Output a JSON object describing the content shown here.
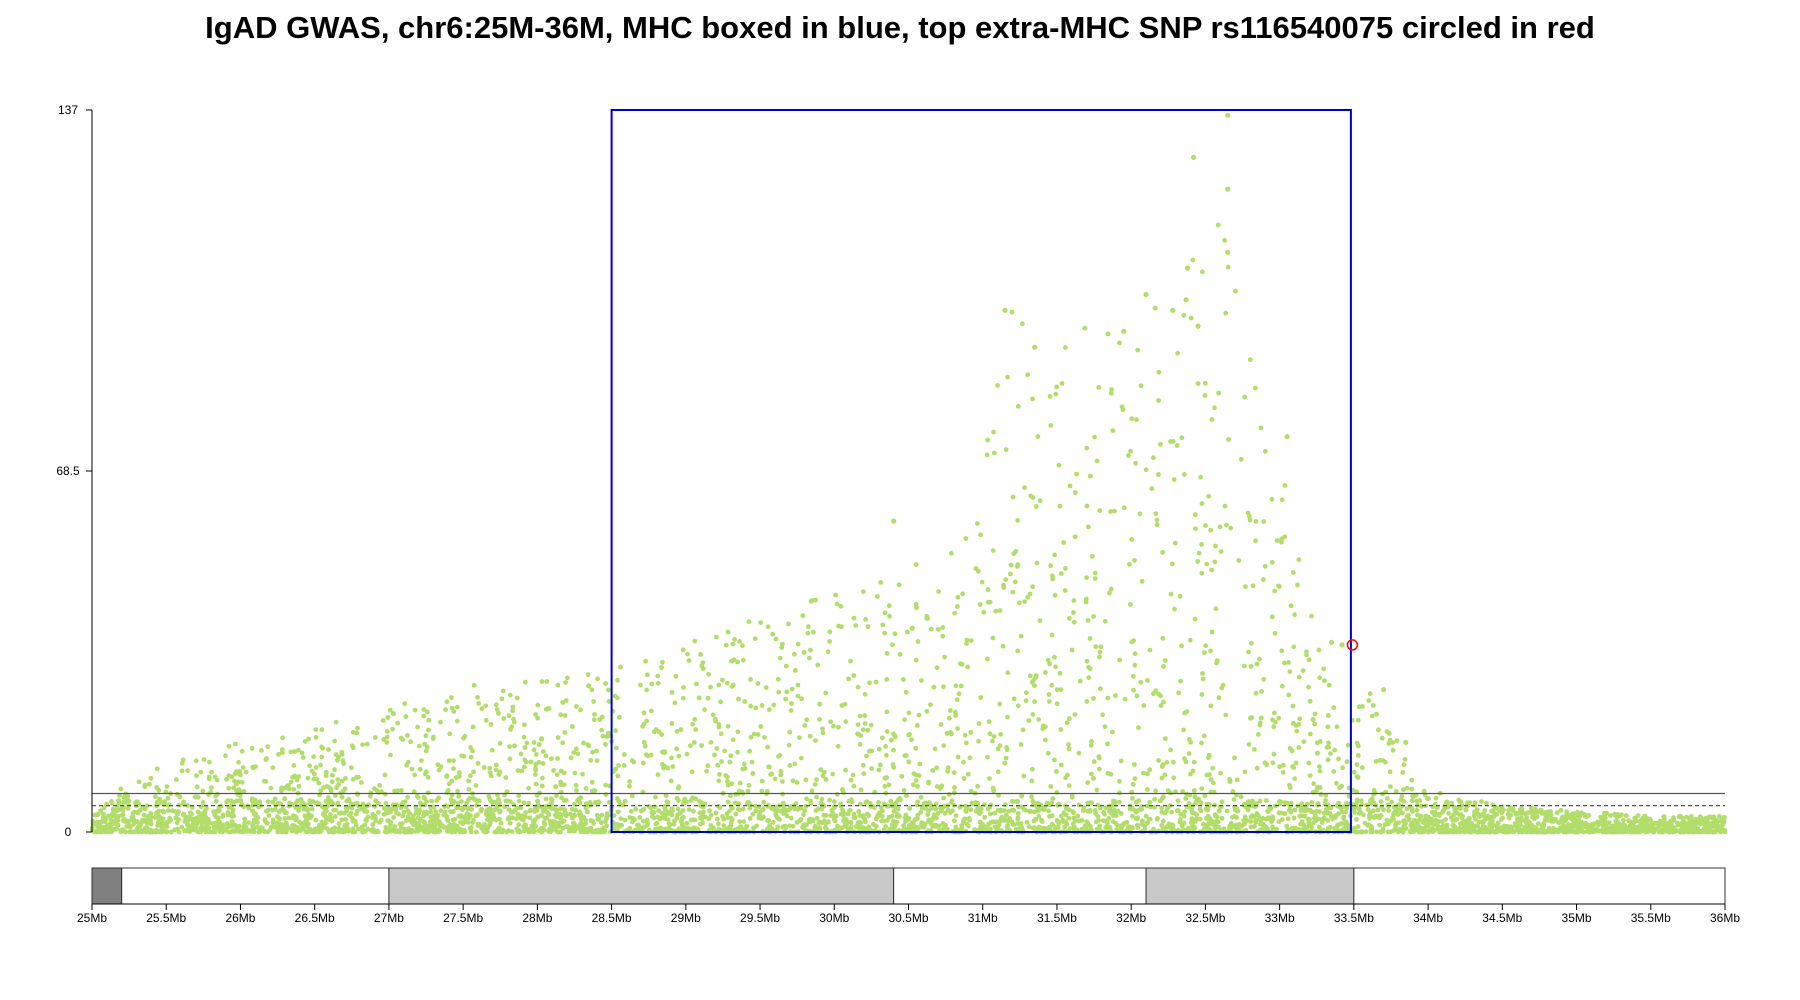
{
  "chart_data": {
    "type": "scatter",
    "title": "IgAD GWAS, chr6:25M-36M, MHC boxed in blue, top extra-MHC SNP rs116540075 circled in red",
    "xlabel": "",
    "ylabel": "",
    "xlim": [
      25,
      36
    ],
    "ylim": [
      0,
      137
    ],
    "y_ticks": [
      0,
      68.5,
      137
    ],
    "y_tick_labels": [
      "0",
      "68.5",
      "137"
    ],
    "x_ticks": [
      25,
      25.5,
      26,
      26.5,
      27,
      27.5,
      28,
      28.5,
      29,
      29.5,
      30,
      30.5,
      31,
      31.5,
      32,
      32.5,
      33,
      33.5,
      34,
      34.5,
      35,
      35.5,
      36
    ],
    "x_tick_labels": [
      "25Mb",
      "25.5Mb",
      "26Mb",
      "26.5Mb",
      "27Mb",
      "27.5Mb",
      "28Mb",
      "28.5Mb",
      "29Mb",
      "29.5Mb",
      "30Mb",
      "30.5Mb",
      "31Mb",
      "31.5Mb",
      "32Mb",
      "32.5Mb",
      "33Mb",
      "33.5Mb",
      "34Mb",
      "34.5Mb",
      "35Mb",
      "35.5Mb",
      "36Mb"
    ],
    "threshold_lines": [
      {
        "style": "solid",
        "y": 7.3
      },
      {
        "style": "dashed",
        "y": 5
      }
    ],
    "mhc_box": {
      "x0": 28.5,
      "x1": 33.48,
      "color": "#0000cc"
    },
    "highlight_snp": {
      "name": "rs116540075",
      "x": 33.49,
      "y": 35.5,
      "color": "#ff0000"
    },
    "point_color": "#b3dd6a",
    "ideogram_bands": [
      {
        "start": 25.0,
        "end": 25.2,
        "shade": "#808080"
      },
      {
        "start": 25.2,
        "end": 27.0,
        "shade": "#ffffff"
      },
      {
        "start": 27.0,
        "end": 30.4,
        "shade": "#c8c8c8"
      },
      {
        "start": 30.4,
        "end": 32.1,
        "shade": "#ffffff"
      },
      {
        "start": 32.1,
        "end": 33.5,
        "shade": "#c8c8c8"
      },
      {
        "start": 33.5,
        "end": 36.0,
        "shade": "#ffffff"
      }
    ],
    "envelope": [
      [
        25.0,
        3
      ],
      [
        25.2,
        9
      ],
      [
        25.5,
        13
      ],
      [
        25.8,
        16
      ],
      [
        26.0,
        17
      ],
      [
        26.3,
        18
      ],
      [
        26.6,
        21
      ],
      [
        27.0,
        24
      ],
      [
        27.3,
        27
      ],
      [
        27.6,
        28
      ],
      [
        28.0,
        29
      ],
      [
        28.3,
        30
      ],
      [
        28.5,
        31
      ],
      [
        28.8,
        33
      ],
      [
        29.1,
        37
      ],
      [
        29.5,
        42
      ],
      [
        29.8,
        45
      ],
      [
        30.1,
        46
      ],
      [
        30.4,
        50
      ],
      [
        30.7,
        52
      ],
      [
        30.9,
        58
      ],
      [
        31.0,
        70
      ],
      [
        31.1,
        88
      ],
      [
        31.2,
        100
      ],
      [
        31.4,
        92
      ],
      [
        31.6,
        95
      ],
      [
        31.8,
        98
      ],
      [
        32.0,
        100
      ],
      [
        32.3,
        103
      ],
      [
        32.6,
        120
      ],
      [
        32.8,
        90
      ],
      [
        33.0,
        76
      ],
      [
        33.2,
        46
      ],
      [
        33.4,
        20
      ],
      [
        33.6,
        27
      ],
      [
        33.8,
        18
      ],
      [
        34.0,
        8
      ],
      [
        34.5,
        5
      ],
      [
        35.0,
        4
      ],
      [
        35.5,
        3
      ],
      [
        36.0,
        3
      ]
    ],
    "standout_points": [
      [
        32.65,
        136
      ],
      [
        32.65,
        122
      ],
      [
        32.42,
        128
      ],
      [
        32.38,
        107
      ],
      [
        32.37,
        101
      ],
      [
        32.65,
        110
      ],
      [
        31.15,
        99
      ],
      [
        32.28,
        99
      ],
      [
        32.45,
        96
      ],
      [
        32.1,
        102
      ],
      [
        31.35,
        92
      ],
      [
        31.95,
        95
      ],
      [
        33.05,
        75
      ],
      [
        30.4,
        59
      ],
      [
        33.35,
        36
      ],
      [
        33.42,
        35.5
      ],
      [
        33.7,
        27
      ],
      [
        33.85,
        17
      ]
    ]
  }
}
